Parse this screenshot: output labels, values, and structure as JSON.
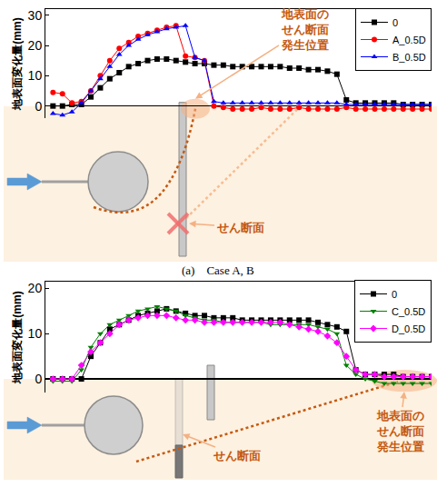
{
  "chart_data": [
    {
      "type": "line",
      "title": "(a)    Case A, B",
      "y_label": "地表面変化量(mm)",
      "annotations": [
        "地表面のせん断面発生位置",
        "せん断面"
      ],
      "x": [
        0,
        2.5,
        5,
        7.5,
        10,
        12.5,
        15,
        17.5,
        20,
        22.5,
        25,
        27.5,
        30,
        32.5,
        35,
        37.5,
        40,
        42.5,
        45,
        47.5,
        50,
        52.5,
        55,
        57.5,
        60,
        62.5,
        65,
        67.5,
        70,
        72.5,
        75,
        77.5,
        80,
        82.5,
        85,
        87.5,
        90,
        92.5,
        95,
        97.5,
        100
      ],
      "xlim": [
        -2,
        100
      ],
      "ylim": [
        -4,
        32
      ],
      "yticks": [
        0,
        10,
        20,
        30
      ],
      "grid": false,
      "legend": "upper right",
      "tick_labels": "y",
      "series": [
        {
          "name": "0",
          "color": "#000000",
          "marker": "square",
          "values": [
            0,
            0,
            0.5,
            0.5,
            3,
            6,
            9,
            11,
            13,
            14,
            15,
            15.5,
            15.5,
            15,
            14.5,
            14,
            14,
            13.5,
            13.5,
            13,
            13,
            13,
            13,
            13,
            13,
            12.5,
            12.5,
            12,
            12,
            11.5,
            10.5,
            2,
            1,
            1,
            1,
            1,
            1,
            0.5,
            0.5,
            0.5,
            0.5
          ]
        },
        {
          "name": "A_0.5D",
          "color": "#ff0000",
          "marker": "circle",
          "values": [
            4.5,
            4,
            1,
            1.5,
            5,
            10,
            15,
            19,
            21,
            23,
            24,
            25,
            26,
            26.5,
            16.5,
            16,
            15,
            0,
            -0.5,
            -1,
            -1,
            -1,
            -0.5,
            -1,
            -1,
            -1,
            -0.5,
            -1,
            -1,
            -1,
            -1,
            -0.5,
            -1,
            -1,
            -1,
            -1,
            -1,
            -1,
            -1,
            -1,
            -1
          ]
        },
        {
          "name": "B_0.5D",
          "color": "#0000ff",
          "marker": "triangle-up",
          "values": [
            -2.5,
            -3,
            -2,
            1,
            5,
            9,
            13,
            17,
            20,
            22,
            23.5,
            24.5,
            25.5,
            26,
            26.5,
            16,
            15,
            1.5,
            1,
            1,
            1,
            1,
            1,
            1,
            1,
            1,
            1,
            1,
            1,
            1,
            1,
            0.5,
            0.5,
            0.5,
            0.5,
            0.5,
            0.5,
            0.5,
            0.5,
            0.5,
            0.5
          ]
        }
      ]
    },
    {
      "type": "line",
      "y_label": "地表面変化量(mm)",
      "annotations": [
        "地表面のせん断面発生位置",
        "せん断面"
      ],
      "x": [
        0,
        2.5,
        5,
        7.5,
        10,
        12.5,
        15,
        17.5,
        20,
        22.5,
        25,
        27.5,
        30,
        32.5,
        35,
        37.5,
        40,
        42.5,
        45,
        47.5,
        50,
        52.5,
        55,
        57.5,
        60,
        62.5,
        65,
        67.5,
        70,
        72.5,
        75,
        77.5,
        80,
        82.5,
        85,
        87.5,
        90,
        92.5,
        95,
        97.5,
        100
      ],
      "xlim": [
        -2,
        100
      ],
      "ylim": [
        -3,
        21.5
      ],
      "yticks": [
        0,
        10,
        20
      ],
      "grid": false,
      "legend": "upper right",
      "tick_labels": "y",
      "series": [
        {
          "name": "0",
          "color": "#000000",
          "marker": "square",
          "values": [
            0,
            0,
            0,
            0,
            5,
            8,
            11,
            12,
            13,
            14,
            14.5,
            15,
            15.5,
            15,
            14.5,
            14,
            14,
            13.5,
            13.5,
            13.5,
            13,
            13,
            13,
            13,
            13,
            13,
            13,
            13,
            12.5,
            12,
            11.5,
            10.5,
            2,
            1,
            1,
            1,
            1,
            0.5,
            0.5,
            0.5,
            0.5
          ]
        },
        {
          "name": "C_0.5D",
          "color": "#008000",
          "marker": "triangle-down",
          "values": [
            -0.5,
            -0.5,
            -0.5,
            2,
            7,
            10,
            12,
            13,
            14,
            15,
            15.5,
            16,
            15.5,
            15,
            14,
            13.5,
            13,
            13,
            12.5,
            12.5,
            12.5,
            12.5,
            12.5,
            12,
            12,
            12,
            12,
            12,
            11.5,
            11,
            10,
            3,
            1,
            0,
            -0.5,
            -1,
            -1,
            -1,
            -1,
            -1,
            -1
          ]
        },
        {
          "name": "D_0.5D",
          "color": "#ff00ff",
          "marker": "diamond",
          "values": [
            0,
            0,
            0,
            3,
            6,
            8,
            10,
            12,
            13,
            13.5,
            14,
            14,
            14,
            13.5,
            13,
            13,
            12.5,
            12.5,
            12.5,
            12.5,
            12.5,
            12.5,
            12.5,
            12.5,
            12.5,
            12,
            11.5,
            11,
            10.5,
            9.5,
            8,
            5,
            2,
            1,
            1,
            0.5,
            0.5,
            0.5,
            0.5,
            0.5,
            0.5
          ]
        }
      ]
    }
  ]
}
